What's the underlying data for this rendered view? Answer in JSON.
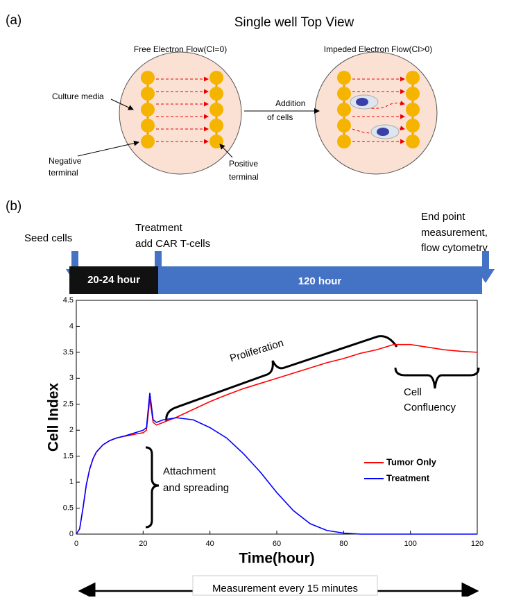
{
  "panel_a": {
    "label": "(a)",
    "title": "Single well Top View",
    "left_title": "Free Electron Flow(CI=0)",
    "right_title": "Impeded Electron Flow(CI>0)",
    "culture_media": "Culture media",
    "negative": [
      "Negative",
      "terminal"
    ],
    "positive": [
      "Positive",
      "terminal"
    ],
    "addition": [
      "Addition",
      "of cells"
    ]
  },
  "panel_b": {
    "label": "(b)",
    "seed": "Seed cells",
    "treatment": [
      "Treatment",
      "add CAR T-cells"
    ],
    "endpoint": [
      "End point",
      "measurement,",
      "flow cytometry"
    ],
    "phase1": "20-24 hour",
    "phase2": "120 hour",
    "footer": "Measurement every 15 minutes"
  },
  "chart_data": {
    "type": "line",
    "xlabel": "Time(hour)",
    "ylabel": "Cell Index",
    "xlim": [
      0,
      120
    ],
    "xticks": [
      0,
      20,
      40,
      60,
      80,
      100,
      120
    ],
    "ylim": [
      0,
      4.5
    ],
    "yticks": [
      0,
      0.5,
      1,
      1.5,
      2,
      2.5,
      3,
      3.5,
      4,
      4.5
    ],
    "x": [
      0,
      1,
      2,
      3,
      4,
      5,
      6,
      8,
      10,
      12,
      14,
      16,
      18,
      20,
      21,
      22,
      23,
      24,
      26,
      28,
      30,
      35,
      40,
      45,
      50,
      55,
      60,
      65,
      70,
      75,
      80,
      85,
      90,
      95,
      100,
      105,
      110,
      115,
      120
    ],
    "series": [
      {
        "name": "Tumor Only",
        "color": "#ff0000",
        "values": [
          0,
          0.1,
          0.5,
          0.95,
          1.25,
          1.45,
          1.58,
          1.72,
          1.8,
          1.85,
          1.88,
          1.9,
          1.93,
          1.95,
          2.0,
          2.6,
          2.15,
          2.1,
          2.15,
          2.2,
          2.25,
          2.4,
          2.55,
          2.68,
          2.8,
          2.9,
          3.0,
          3.1,
          3.2,
          3.3,
          3.38,
          3.48,
          3.55,
          3.65,
          3.65,
          3.6,
          3.55,
          3.52,
          3.5
        ]
      },
      {
        "name": "Treatment",
        "color": "#0000ff",
        "values": [
          0,
          0.1,
          0.5,
          0.95,
          1.25,
          1.45,
          1.58,
          1.72,
          1.8,
          1.85,
          1.88,
          1.92,
          1.96,
          2.0,
          2.05,
          2.72,
          2.2,
          2.15,
          2.2,
          2.22,
          2.24,
          2.2,
          2.05,
          1.85,
          1.55,
          1.2,
          0.8,
          0.45,
          0.2,
          0.07,
          0.02,
          0,
          0,
          0,
          0,
          0,
          0,
          0,
          0
        ]
      }
    ],
    "annotations": [
      "Proliferation",
      "Cell",
      "Confluency",
      "Attachment",
      "and spreading"
    ],
    "legend": "lower right"
  }
}
